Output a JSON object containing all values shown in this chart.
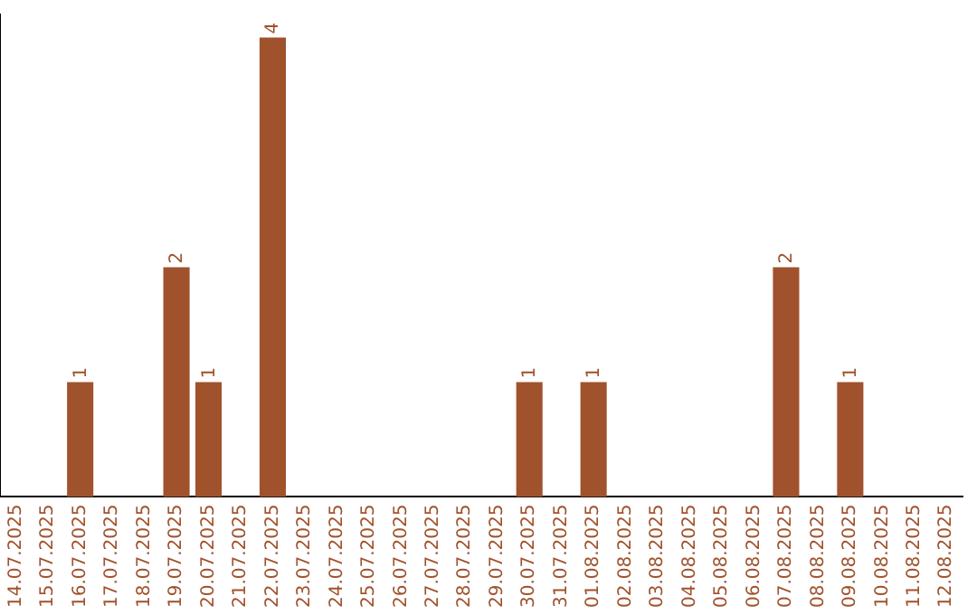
{
  "chart_data": {
    "type": "bar",
    "categories": [
      "14.07.2025",
      "15.07.2025",
      "16.07.2025",
      "17.07.2025",
      "18.07.2025",
      "19.07.2025",
      "20.07.2025",
      "21.07.2025",
      "22.07.2025",
      "23.07.2025",
      "24.07.2025",
      "25.07.2025",
      "26.07.2025",
      "27.07.2025",
      "28.07.2025",
      "29.07.2025",
      "30.07.2025",
      "31.07.2025",
      "01.08.2025",
      "02.08.2025",
      "03.08.2025",
      "04.08.2025",
      "05.08.2025",
      "06.08.2025",
      "07.08.2025",
      "08.08.2025",
      "09.08.2025",
      "10.08.2025",
      "11.08.2025",
      "12.08.2025"
    ],
    "values": [
      0,
      0,
      1,
      0,
      0,
      2,
      1,
      0,
      4,
      0,
      0,
      0,
      0,
      0,
      0,
      0,
      1,
      0,
      1,
      0,
      0,
      0,
      0,
      0,
      2,
      0,
      1,
      0,
      0,
      0
    ],
    "value_labels": [
      null,
      null,
      "1",
      null,
      null,
      "2",
      "1",
      null,
      "4",
      null,
      null,
      null,
      null,
      null,
      null,
      null,
      "1",
      null,
      "1",
      null,
      null,
      null,
      null,
      null,
      "2",
      null,
      "1",
      null,
      null,
      null
    ],
    "color": "#a0522d",
    "ylim": [
      0,
      4.2
    ],
    "tick_labels": "x",
    "grid": false,
    "legend": false
  }
}
